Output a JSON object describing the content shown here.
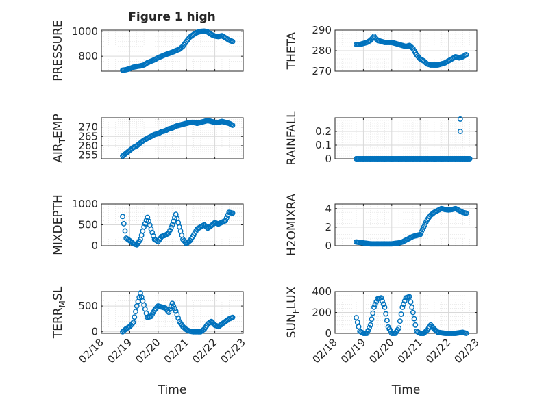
{
  "figure": {
    "title": "Figure 1 high",
    "xlabel": "Time",
    "date_ticks": [
      "02/18",
      "02/19",
      "02/20",
      "02/21",
      "02/22",
      "02/23"
    ],
    "marker_color": "#0072BD",
    "grid_color": "#e0e0e0"
  },
  "chart_data": [
    {
      "type": "scatter",
      "ylabel": "PRESSURE",
      "xlim": [
        "02/18",
        "02/23"
      ],
      "ylim": [
        680,
        1010
      ],
      "yticks": [
        800,
        1000
      ],
      "x": [
        "02/18 18:00",
        "02/18 21:00",
        "02/19 00:00",
        "02/19 03:00",
        "02/19 06:00",
        "02/19 09:00",
        "02/19 12:00",
        "02/19 15:00",
        "02/19 18:00",
        "02/19 21:00",
        "02/20 00:00",
        "02/20 03:00",
        "02/20 06:00",
        "02/20 09:00",
        "02/20 12:00",
        "02/20 15:00",
        "02/20 18:00",
        "02/20 21:00",
        "02/21 00:00",
        "02/21 03:00",
        "02/21 06:00",
        "02/21 09:00",
        "02/21 12:00",
        "02/21 15:00",
        "02/21 18:00",
        "02/21 21:00",
        "02/22 00:00",
        "02/22 03:00",
        "02/22 06:00",
        "02/22 09:00",
        "02/22 12:00",
        "02/22 15:00"
      ],
      "y": [
        688,
        692,
        700,
        712,
        718,
        722,
        730,
        748,
        760,
        772,
        788,
        800,
        812,
        822,
        832,
        845,
        856,
        880,
        920,
        955,
        975,
        992,
        1000,
        1002,
        995,
        975,
        962,
        958,
        965,
        948,
        930,
        918
      ]
    },
    {
      "type": "scatter",
      "ylabel": "THETA",
      "xlim": [
        "02/18",
        "02/23"
      ],
      "ylim": [
        270,
        290
      ],
      "yticks": [
        270,
        280,
        290
      ],
      "x": [
        "02/18 18:00",
        "02/18 21:00",
        "02/19 00:00",
        "02/19 03:00",
        "02/19 06:00",
        "02/19 09:00",
        "02/19 12:00",
        "02/19 15:00",
        "02/19 18:00",
        "02/19 21:00",
        "02/20 00:00",
        "02/20 03:00",
        "02/20 06:00",
        "02/20 09:00",
        "02/20 12:00",
        "02/20 15:00",
        "02/20 18:00",
        "02/20 21:00",
        "02/21 00:00",
        "02/21 03:00",
        "02/21 06:00",
        "02/21 09:00",
        "02/21 12:00",
        "02/21 15:00",
        "02/21 18:00",
        "02/21 21:00",
        "02/22 00:00",
        "02/22 03:00",
        "02/22 06:00",
        "02/22 09:00",
        "02/22 12:00",
        "02/22 15:00"
      ],
      "y": [
        283,
        283,
        283.5,
        284,
        285,
        287,
        285,
        284.5,
        284,
        284,
        284,
        283.5,
        283,
        282.5,
        282,
        282.5,
        281,
        278,
        276,
        275,
        273.5,
        273,
        273,
        273,
        273.5,
        274,
        275,
        276,
        277,
        276.5,
        277,
        278
      ]
    },
    {
      "type": "scatter",
      "ylabel": "AIR_TEMP",
      "xlim": [
        "02/18",
        "02/23"
      ],
      "ylim": [
        253,
        275
      ],
      "yticks": [
        255,
        260,
        265,
        270
      ],
      "x": [
        "02/18 18:00",
        "02/18 21:00",
        "02/19 00:00",
        "02/19 03:00",
        "02/19 06:00",
        "02/19 09:00",
        "02/19 12:00",
        "02/19 15:00",
        "02/19 18:00",
        "02/19 21:00",
        "02/20 00:00",
        "02/20 03:00",
        "02/20 06:00",
        "02/20 09:00",
        "02/20 12:00",
        "02/20 15:00",
        "02/20 18:00",
        "02/20 21:00",
        "02/21 00:00",
        "02/21 03:00",
        "02/21 06:00",
        "02/21 09:00",
        "02/21 12:00",
        "02/21 15:00",
        "02/21 18:00",
        "02/21 21:00",
        "02/22 00:00",
        "02/22 03:00",
        "02/22 06:00",
        "02/22 09:00",
        "02/22 12:00",
        "02/22 15:00"
      ],
      "y": [
        254.5,
        256,
        257.5,
        259,
        260,
        261.5,
        263,
        264,
        265,
        266,
        266.5,
        267.5,
        268,
        269,
        269.5,
        270.5,
        271,
        271.5,
        272,
        272.5,
        272.5,
        272,
        272.5,
        273,
        273.5,
        273,
        272.5,
        272.5,
        273,
        272.5,
        272,
        271
      ]
    },
    {
      "type": "scatter",
      "ylabel": "RAINFALL",
      "xlim": [
        "02/18",
        "02/23"
      ],
      "ylim": [
        0,
        0.3
      ],
      "yticks": [
        0,
        0.1,
        0.2
      ],
      "x": [
        "02/18 18:00",
        "02/19 00:00",
        "02/19 06:00",
        "02/19 12:00",
        "02/19 18:00",
        "02/20 00:00",
        "02/20 06:00",
        "02/20 12:00",
        "02/20 18:00",
        "02/21 00:00",
        "02/21 06:00",
        "02/21 12:00",
        "02/21 18:00",
        "02/22 00:00",
        "02/22 06:00",
        "02/22 10:00",
        "02/22 12:00",
        "02/22 14:00",
        "02/22 16:00",
        "02/22 10:00",
        "02/22 10:00"
      ],
      "y": [
        0,
        0,
        0,
        0,
        0,
        0,
        0,
        0,
        0,
        0,
        0,
        0,
        0,
        0,
        0,
        0,
        0,
        0,
        0,
        0.29,
        0.2
      ]
    },
    {
      "type": "scatter",
      "ylabel": "MIXDEPTH",
      "xlim": [
        "02/18",
        "02/23"
      ],
      "ylim": [
        0,
        1000
      ],
      "yticks": [
        0,
        500,
        1000
      ],
      "x": [
        "02/18 18:00",
        "02/18 21:00",
        "02/19 00:00",
        "02/19 03:00",
        "02/19 06:00",
        "02/19 09:00",
        "02/19 12:00",
        "02/19 15:00",
        "02/19 18:00",
        "02/19 21:00",
        "02/20 00:00",
        "02/20 03:00",
        "02/20 06:00",
        "02/20 09:00",
        "02/20 12:00",
        "02/20 15:00",
        "02/20 18:00",
        "02/20 21:00",
        "02/21 00:00",
        "02/21 03:00",
        "02/21 06:00",
        "02/21 09:00",
        "02/21 12:00",
        "02/21 15:00",
        "02/21 18:00",
        "02/21 21:00",
        "02/22 00:00",
        "02/22 03:00",
        "02/22 06:00",
        "02/22 09:00",
        "02/22 12:00",
        "02/22 15:00"
      ],
      "y": [
        700,
        180,
        120,
        50,
        20,
        150,
        450,
        680,
        400,
        150,
        100,
        220,
        250,
        300,
        500,
        750,
        450,
        150,
        50,
        120,
        250,
        400,
        450,
        500,
        420,
        480,
        550,
        520,
        560,
        600,
        800,
        780
      ]
    },
    {
      "type": "scatter",
      "ylabel": "H2OMIXRA",
      "xlim": [
        "02/18",
        "02/23"
      ],
      "ylim": [
        0,
        4.5
      ],
      "yticks": [
        0,
        2,
        4
      ],
      "x": [
        "02/18 18:00",
        "02/18 21:00",
        "02/19 00:00",
        "02/19 03:00",
        "02/19 06:00",
        "02/19 09:00",
        "02/19 12:00",
        "02/19 15:00",
        "02/19 18:00",
        "02/19 21:00",
        "02/20 00:00",
        "02/20 03:00",
        "02/20 06:00",
        "02/20 09:00",
        "02/20 12:00",
        "02/20 15:00",
        "02/20 18:00",
        "02/20 21:00",
        "02/21 00:00",
        "02/21 03:00",
        "02/21 06:00",
        "02/21 09:00",
        "02/21 12:00",
        "02/21 15:00",
        "02/21 18:00",
        "02/21 21:00",
        "02/22 00:00",
        "02/22 03:00",
        "02/22 06:00",
        "02/22 09:00",
        "02/22 12:00",
        "02/22 15:00"
      ],
      "y": [
        0.4,
        0.35,
        0.3,
        0.25,
        0.2,
        0.2,
        0.2,
        0.2,
        0.2,
        0.2,
        0.2,
        0.25,
        0.3,
        0.4,
        0.6,
        0.8,
        1.0,
        1.1,
        1.2,
        2.0,
        2.8,
        3.3,
        3.6,
        3.8,
        4.0,
        3.9,
        3.85,
        3.9,
        4.0,
        3.8,
        3.6,
        3.5
      ]
    },
    {
      "type": "scatter",
      "ylabel": "TERR_MSL",
      "xlim": [
        "02/18",
        "02/23"
      ],
      "ylim": [
        -30,
        780
      ],
      "yticks": [
        0,
        500
      ],
      "x": [
        "02/18 18:00",
        "02/18 21:00",
        "02/19 00:00",
        "02/19 03:00",
        "02/19 06:00",
        "02/19 09:00",
        "02/19 12:00",
        "02/19 15:00",
        "02/19 18:00",
        "02/19 21:00",
        "02/20 00:00",
        "02/20 03:00",
        "02/20 06:00",
        "02/20 09:00",
        "02/20 12:00",
        "02/20 15:00",
        "02/20 18:00",
        "02/20 21:00",
        "02/21 00:00",
        "02/21 03:00",
        "02/21 06:00",
        "02/21 09:00",
        "02/21 12:00",
        "02/21 15:00",
        "02/21 18:00",
        "02/21 21:00",
        "02/22 00:00",
        "02/22 03:00",
        "02/22 06:00",
        "02/22 09:00",
        "02/22 12:00",
        "02/22 15:00"
      ],
      "y": [
        0,
        60,
        100,
        180,
        500,
        750,
        520,
        280,
        300,
        420,
        500,
        480,
        460,
        380,
        550,
        400,
        200,
        100,
        40,
        10,
        0,
        0,
        0,
        50,
        150,
        200,
        130,
        100,
        150,
        200,
        250,
        280
      ]
    },
    {
      "type": "scatter",
      "ylabel": "SUN_FLUX",
      "xlim": [
        "02/18",
        "02/23"
      ],
      "ylim": [
        0,
        400
      ],
      "yticks": [
        0,
        200,
        400
      ],
      "x": [
        "02/18 18:00",
        "02/18 21:00",
        "02/19 00:00",
        "02/19 03:00",
        "02/19 06:00",
        "02/19 09:00",
        "02/19 12:00",
        "02/19 15:00",
        "02/19 18:00",
        "02/19 21:00",
        "02/20 00:00",
        "02/20 03:00",
        "02/20 06:00",
        "02/20 09:00",
        "02/20 12:00",
        "02/20 15:00",
        "02/20 18:00",
        "02/20 21:00",
        "02/21 00:00",
        "02/21 03:00",
        "02/21 06:00",
        "02/21 09:00",
        "02/21 12:00",
        "02/21 15:00",
        "02/21 18:00",
        "02/21 21:00",
        "02/22 00:00",
        "02/22 03:00",
        "02/22 06:00",
        "02/22 09:00",
        "02/22 12:00",
        "02/22 15:00"
      ],
      "y": [
        150,
        20,
        0,
        0,
        80,
        250,
        330,
        340,
        250,
        60,
        0,
        0,
        50,
        250,
        340,
        350,
        200,
        20,
        0,
        0,
        30,
        80,
        40,
        10,
        5,
        0,
        0,
        0,
        0,
        5,
        10,
        0
      ]
    }
  ]
}
